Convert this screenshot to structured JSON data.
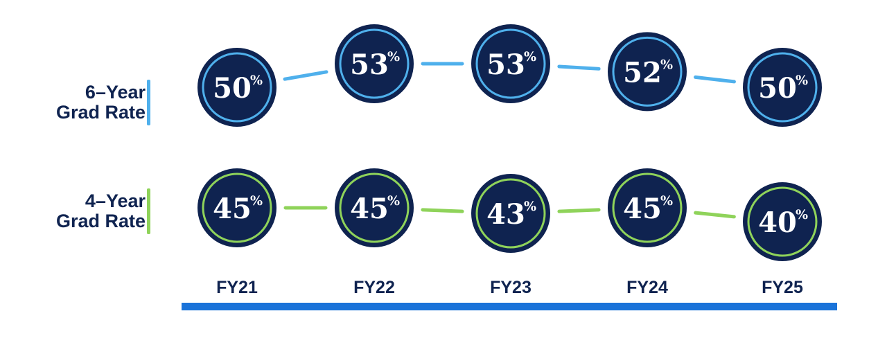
{
  "chart_data": {
    "type": "line",
    "categories": [
      "FY21",
      "FY22",
      "FY23",
      "FY24",
      "FY25"
    ],
    "series": [
      {
        "name": "6-Year Grad Rate",
        "name_lines": [
          "6–Year",
          "Grad Rate"
        ],
        "values": [
          50,
          53,
          53,
          52,
          50
        ],
        "labels": [
          "50",
          "53",
          "53",
          "52",
          "50"
        ],
        "color": "#4fb0ec"
      },
      {
        "name": "4-Year Grad Rate",
        "name_lines": [
          "4–Year",
          "Grad Rate"
        ],
        "values": [
          45,
          45,
          43,
          45,
          40
        ],
        "labels": [
          "45",
          "45",
          "43",
          "45",
          "40"
        ],
        "color": "#8fd35a"
      }
    ],
    "value_suffix": "%",
    "bubble_color": "#0f2350",
    "axis_color": "#1a73d9",
    "label_color": "#0f2350"
  }
}
